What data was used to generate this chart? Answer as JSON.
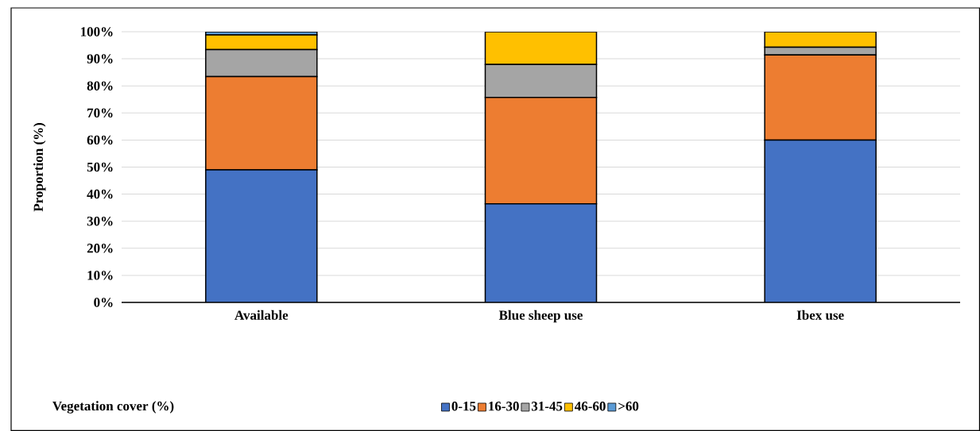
{
  "chart_data": {
    "type": "bar",
    "stacked": true,
    "ylabel": "Proportion (%)",
    "legend_title": "Vegetation cover (%)",
    "legend": "bottom",
    "grid": "y",
    "categories": [
      "Available",
      "Blue sheep use",
      "Ibex use"
    ],
    "series": [
      {
        "name": "0-15",
        "color": "#4472c4",
        "values": [
          49,
          36.4,
          60
        ]
      },
      {
        "name": "16-30",
        "color": "#ed7d31",
        "values": [
          34.4,
          39.3,
          31.4
        ]
      },
      {
        "name": "31-45",
        "color": "#a5a5a5",
        "values": [
          10,
          12.2,
          2.9
        ]
      },
      {
        "name": "46-60",
        "color": "#ffc000",
        "values": [
          5.4,
          12.1,
          5.7
        ]
      },
      {
        "name": ">60",
        "color": "#5b9bd5",
        "values": [
          1.2,
          0,
          0
        ]
      }
    ],
    "ylim": [
      0,
      100
    ],
    "yticks": [
      {
        "value": 0,
        "label": "0%"
      },
      {
        "value": 10,
        "label": "10%"
      },
      {
        "value": 20,
        "label": "20%"
      },
      {
        "value": 30,
        "label": "30%"
      },
      {
        "value": 40,
        "label": "40%"
      },
      {
        "value": 50,
        "label": "50%"
      },
      {
        "value": 60,
        "label": "60%"
      },
      {
        "value": 70,
        "label": "70%"
      },
      {
        "value": 80,
        "label": "80%"
      },
      {
        "value": 90,
        "label": "90%"
      },
      {
        "value": 100,
        "label": "100%"
      }
    ]
  }
}
